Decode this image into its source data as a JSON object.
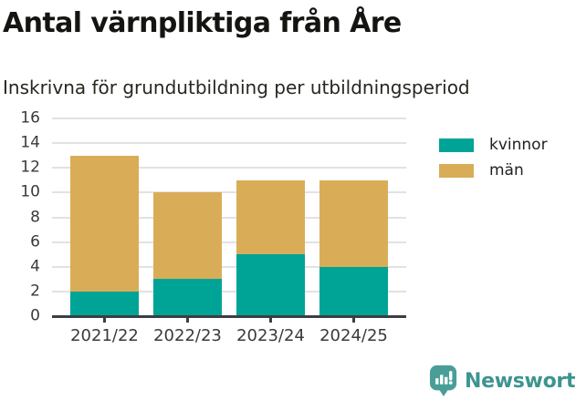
{
  "header": {
    "title": "Antal värnpliktiga från Åre",
    "subtitle": "Inskrivna för grundutbildning per utbildningsperiod"
  },
  "chart_data": {
    "type": "bar",
    "stacked": true,
    "categories": [
      "2021/22",
      "2022/23",
      "2023/24",
      "2024/25"
    ],
    "series": [
      {
        "name": "kvinnor",
        "color": "#00a496",
        "values": [
          2,
          3,
          5,
          4
        ]
      },
      {
        "name": "män",
        "color": "#d9ad57",
        "values": [
          11,
          7,
          6,
          7
        ]
      }
    ],
    "totals": [
      13,
      10,
      11,
      11
    ],
    "title": "Antal värnpliktiga från Åre",
    "subtitle": "Inskrivna för grundutbildning per utbildningsperiod",
    "xlabel": "",
    "ylabel": "",
    "ylim": [
      0,
      16
    ],
    "ytick_step": 2,
    "grid": true,
    "legend_position": "right"
  },
  "legend": {
    "items": [
      {
        "label": "kvinnor",
        "color": "#00a496"
      },
      {
        "label": "män",
        "color": "#d9ad57"
      }
    ]
  },
  "footer": {
    "brand_name": "Newsworthy",
    "brand_color": "#3d948f",
    "icon_color": "#4a9e98",
    "icon": "bar-chart-speech-bubble"
  },
  "style": {
    "grid_color": "#e2e2e2",
    "axis_color": "#3d3d44",
    "tick_text_color": "#3a3a3a"
  }
}
